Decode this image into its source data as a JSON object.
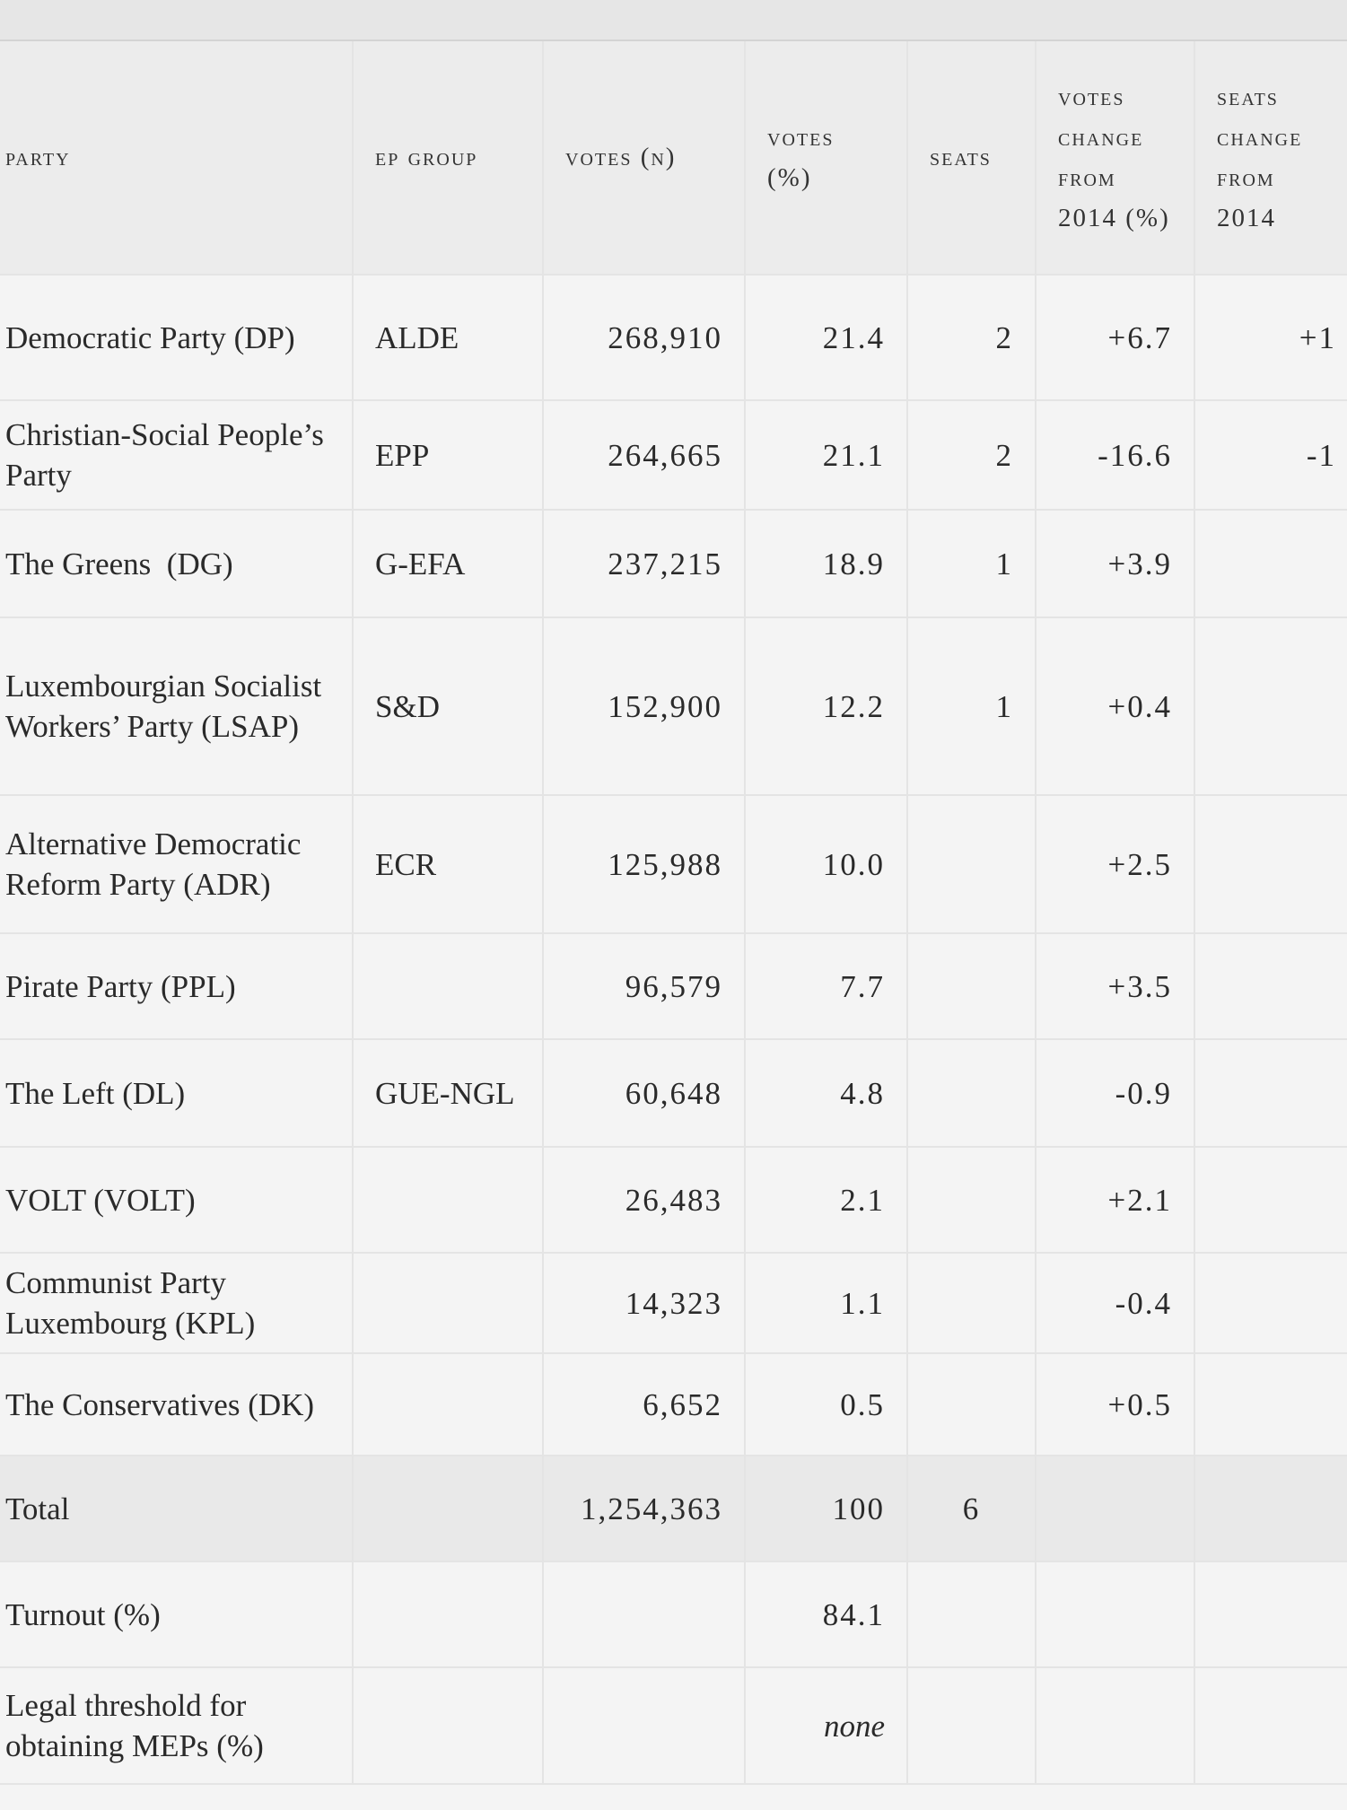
{
  "headers": [
    "PARTY",
    "EP GROUP",
    "VOTES (N)",
    "VOTES (%)",
    "SEATS",
    "VOTES CHANGE FROM 2014 (%)",
    "SEATS CHANGE FROM 2014"
  ],
  "rows": [
    {
      "party": "Democratic Party (DP)",
      "group": "ALDE",
      "votes_n": "268,910",
      "votes_pct": "21.4",
      "seats": "2",
      "votes_change": "+6.7",
      "seats_change": "+1"
    },
    {
      "party": "Christian-Social People’s Party",
      "group": "EPP",
      "votes_n": "264,665",
      "votes_pct": "21.1",
      "seats": "2",
      "votes_change": "-16.6",
      "seats_change": "-1"
    },
    {
      "party": "The Greens  (DG)",
      "group": "G-EFA",
      "votes_n": "237,215",
      "votes_pct": "18.9",
      "seats": "1",
      "votes_change": "+3.9",
      "seats_change": ""
    },
    {
      "party": "Luxembourgian Socialist Workers’ Party (LSAP)",
      "group": "S&D",
      "votes_n": "152,900",
      "votes_pct": "12.2",
      "seats": "1",
      "votes_change": "+0.4",
      "seats_change": ""
    },
    {
      "party": "Alternative Democratic Reform Party (ADR)",
      "group": "ECR",
      "votes_n": "125,988",
      "votes_pct": "10.0",
      "seats": "",
      "votes_change": "+2.5",
      "seats_change": ""
    },
    {
      "party": "Pirate Party (PPL)",
      "group": "",
      "votes_n": "96,579",
      "votes_pct": "7.7",
      "seats": "",
      "votes_change": "+3.5",
      "seats_change": ""
    },
    {
      "party": "The Left (DL)",
      "group": "GUE-NGL",
      "votes_n": "60,648",
      "votes_pct": "4.8",
      "seats": "",
      "votes_change": "-0.9",
      "seats_change": ""
    },
    {
      "party": "VOLT (VOLT)",
      "group": "",
      "votes_n": "26,483",
      "votes_pct": "2.1",
      "seats": "",
      "votes_change": "+2.1",
      "seats_change": ""
    },
    {
      "party": "Communist Party Luxembourg (KPL)",
      "group": "",
      "votes_n": "14,323",
      "votes_pct": "1.1",
      "seats": "",
      "votes_change": "-0.4",
      "seats_change": ""
    },
    {
      "party": "The Conservatives (DK)",
      "group": "",
      "votes_n": "6,652",
      "votes_pct": "0.5",
      "seats": "",
      "votes_change": "+0.5",
      "seats_change": ""
    }
  ],
  "total": {
    "label": "Total",
    "votes_n": "1,254,363",
    "votes_pct": "100",
    "seats": "6"
  },
  "turnout": {
    "label": "Turnout (%)",
    "value": "84.1"
  },
  "threshold": {
    "label": "Legal threshold for obtaining MEPs (%)",
    "value": "none"
  }
}
